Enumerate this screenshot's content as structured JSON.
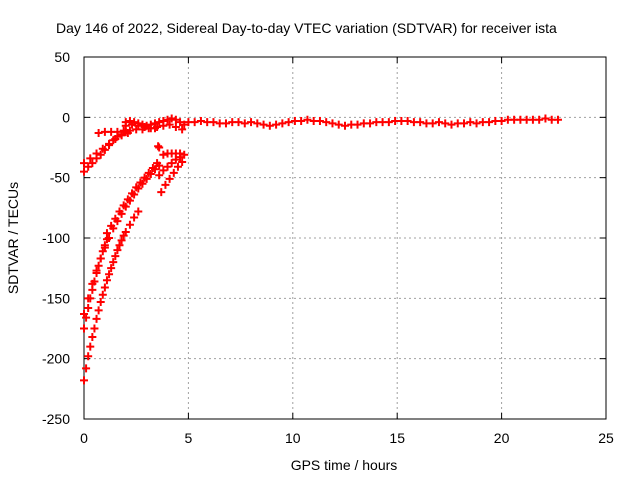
{
  "chart_data": {
    "type": "scatter",
    "title": "Day 146 of 2022, Sidereal Day-to-day VTEC variation (SDTVAR) for receiver ista",
    "xlabel": "GPS time / hours",
    "ylabel": "SDTVAR / TECUs",
    "xlim": [
      0,
      25
    ],
    "ylim": [
      -250,
      50
    ],
    "x_ticks": [
      0,
      5,
      10,
      15,
      20,
      25
    ],
    "y_ticks": [
      50,
      0,
      -50,
      -100,
      -150,
      -200,
      -250
    ],
    "grid": true,
    "marker": "plus",
    "color": "#ff0000",
    "series": [
      {
        "values_xy": [
          [
            0.0,
            -45
          ],
          [
            0.2,
            -41
          ],
          [
            0.4,
            -38
          ],
          [
            0.6,
            -34
          ],
          [
            0.8,
            -31
          ],
          [
            1.0,
            -27
          ],
          [
            1.2,
            -23
          ],
          [
            1.4,
            -19
          ],
          [
            1.6,
            -16
          ],
          [
            1.8,
            -14
          ],
          [
            2.0,
            -12
          ],
          [
            0.0,
            -38
          ],
          [
            0.3,
            -34
          ],
          [
            0.6,
            -30
          ],
          [
            0.9,
            -26
          ],
          [
            1.2,
            -22
          ],
          [
            1.5,
            -18
          ],
          [
            1.8,
            -15
          ],
          [
            2.1,
            -13
          ],
          [
            0.7,
            -13
          ],
          [
            1.0,
            -12
          ],
          [
            1.3,
            -12
          ],
          [
            1.6,
            -12
          ],
          [
            1.9,
            -11
          ],
          [
            2.2,
            -11
          ],
          [
            2.5,
            -10
          ],
          [
            2.8,
            -10
          ],
          [
            3.1,
            -9
          ],
          [
            3.4,
            -9
          ],
          [
            2.0,
            -4
          ],
          [
            2.2,
            -3
          ],
          [
            2.4,
            -4
          ],
          [
            2.6,
            -5
          ],
          [
            2.8,
            -6
          ],
          [
            3.0,
            -7
          ],
          [
            3.2,
            -6
          ],
          [
            3.4,
            -5
          ],
          [
            3.6,
            -4
          ],
          [
            3.8,
            -3
          ],
          [
            4.0,
            -2
          ],
          [
            4.2,
            -1
          ],
          [
            4.4,
            -2
          ],
          [
            4.6,
            -4
          ],
          [
            4.8,
            -6
          ],
          [
            2.0,
            -7
          ],
          [
            2.3,
            -6
          ],
          [
            2.6,
            -7
          ],
          [
            2.9,
            -8
          ],
          [
            3.2,
            -9
          ],
          [
            3.5,
            -8
          ],
          [
            3.8,
            -7
          ],
          [
            4.1,
            -6
          ],
          [
            4.4,
            -8
          ],
          [
            4.7,
            -10
          ],
          [
            5.0,
            -4
          ],
          [
            5.3,
            -4
          ],
          [
            5.6,
            -3
          ],
          [
            5.9,
            -4
          ],
          [
            6.2,
            -4
          ],
          [
            6.5,
            -5
          ],
          [
            6.8,
            -5
          ],
          [
            7.1,
            -4
          ],
          [
            7.4,
            -4
          ],
          [
            7.7,
            -5
          ],
          [
            8.0,
            -4
          ],
          [
            8.3,
            -5
          ],
          [
            8.6,
            -6
          ],
          [
            8.9,
            -7
          ],
          [
            9.2,
            -6
          ],
          [
            9.5,
            -5
          ],
          [
            9.8,
            -4
          ],
          [
            10.1,
            -3
          ],
          [
            10.4,
            -3
          ],
          [
            10.7,
            -2
          ],
          [
            11.0,
            -3
          ],
          [
            11.3,
            -3
          ],
          [
            11.6,
            -4
          ],
          [
            11.9,
            -5
          ],
          [
            12.2,
            -6
          ],
          [
            12.5,
            -7
          ],
          [
            12.8,
            -6
          ],
          [
            13.1,
            -6
          ],
          [
            13.4,
            -5
          ],
          [
            13.7,
            -5
          ],
          [
            14.0,
            -4
          ],
          [
            14.3,
            -4
          ],
          [
            14.6,
            -4
          ],
          [
            14.9,
            -3
          ],
          [
            15.2,
            -3
          ],
          [
            15.5,
            -3
          ],
          [
            15.8,
            -4
          ],
          [
            16.1,
            -4
          ],
          [
            16.4,
            -5
          ],
          [
            16.7,
            -5
          ],
          [
            17.0,
            -4
          ],
          [
            17.3,
            -5
          ],
          [
            17.6,
            -6
          ],
          [
            17.9,
            -5
          ],
          [
            18.2,
            -5
          ],
          [
            18.5,
            -4
          ],
          [
            18.8,
            -5
          ],
          [
            19.1,
            -4
          ],
          [
            19.4,
            -4
          ],
          [
            19.7,
            -3
          ],
          [
            20.0,
            -3
          ],
          [
            20.3,
            -2
          ],
          [
            20.6,
            -2
          ],
          [
            20.9,
            -2
          ],
          [
            21.2,
            -2
          ],
          [
            21.5,
            -2
          ],
          [
            21.8,
            -2
          ],
          [
            22.1,
            -1
          ],
          [
            22.4,
            -2
          ],
          [
            22.7,
            -2
          ],
          [
            0.0,
            -218
          ],
          [
            0.1,
            -208
          ],
          [
            0.2,
            -198
          ],
          [
            0.3,
            -190
          ],
          [
            0.4,
            -182
          ],
          [
            0.5,
            -175
          ],
          [
            0.6,
            -167
          ],
          [
            0.7,
            -160
          ],
          [
            0.8,
            -153
          ],
          [
            0.9,
            -147
          ],
          [
            1.0,
            -141
          ],
          [
            1.1,
            -135
          ],
          [
            1.2,
            -130
          ],
          [
            1.3,
            -125
          ],
          [
            1.4,
            -120
          ],
          [
            1.5,
            -115
          ],
          [
            1.6,
            -110
          ],
          [
            1.7,
            -106
          ],
          [
            1.8,
            -102
          ],
          [
            1.9,
            -98
          ],
          [
            2.0,
            -95
          ],
          [
            2.2,
            -89
          ],
          [
            2.4,
            -83
          ],
          [
            2.6,
            -78
          ],
          [
            0.0,
            -175
          ],
          [
            0.1,
            -166
          ],
          [
            0.2,
            -158
          ],
          [
            0.3,
            -150
          ],
          [
            0.4,
            -143
          ],
          [
            0.5,
            -136
          ],
          [
            0.6,
            -129
          ],
          [
            0.7,
            -123
          ],
          [
            0.8,
            -117
          ],
          [
            0.9,
            -111
          ],
          [
            1.0,
            -106
          ],
          [
            1.1,
            -101
          ],
          [
            0.0,
            -163
          ],
          [
            0.2,
            -150
          ],
          [
            0.4,
            -138
          ],
          [
            0.6,
            -127
          ],
          [
            0.8,
            -117
          ],
          [
            1.0,
            -108
          ],
          [
            1.2,
            -100
          ],
          [
            1.4,
            -92
          ],
          [
            1.6,
            -86
          ],
          [
            1.8,
            -80
          ],
          [
            2.0,
            -74
          ],
          [
            2.2,
            -69
          ],
          [
            2.4,
            -64
          ],
          [
            2.6,
            -59
          ],
          [
            2.8,
            -55
          ],
          [
            3.0,
            -51
          ],
          [
            3.2,
            -47
          ],
          [
            3.4,
            -43
          ],
          [
            3.6,
            -40
          ],
          [
            1.1,
            -96
          ],
          [
            1.3,
            -90
          ],
          [
            1.5,
            -84
          ],
          [
            1.7,
            -78
          ],
          [
            1.9,
            -73
          ],
          [
            2.1,
            -68
          ],
          [
            2.3,
            -63
          ],
          [
            2.5,
            -58
          ],
          [
            2.7,
            -54
          ],
          [
            2.9,
            -50
          ],
          [
            3.1,
            -46
          ],
          [
            3.3,
            -42
          ],
          [
            3.5,
            -38
          ],
          [
            3.7,
            -62
          ],
          [
            3.9,
            -56
          ],
          [
            4.1,
            -51
          ],
          [
            4.3,
            -46
          ],
          [
            4.5,
            -41
          ],
          [
            4.7,
            -37
          ],
          [
            3.6,
            -48
          ],
          [
            3.8,
            -44
          ],
          [
            4.0,
            -41
          ],
          [
            4.2,
            -38
          ],
          [
            4.4,
            -35
          ],
          [
            4.6,
            -33
          ],
          [
            3.8,
            -31
          ],
          [
            4.0,
            -30
          ],
          [
            4.2,
            -30
          ],
          [
            4.4,
            -30
          ],
          [
            4.6,
            -30
          ],
          [
            4.8,
            -31
          ],
          [
            3.55,
            -24
          ],
          [
            3.6,
            -25
          ]
        ]
      }
    ]
  }
}
